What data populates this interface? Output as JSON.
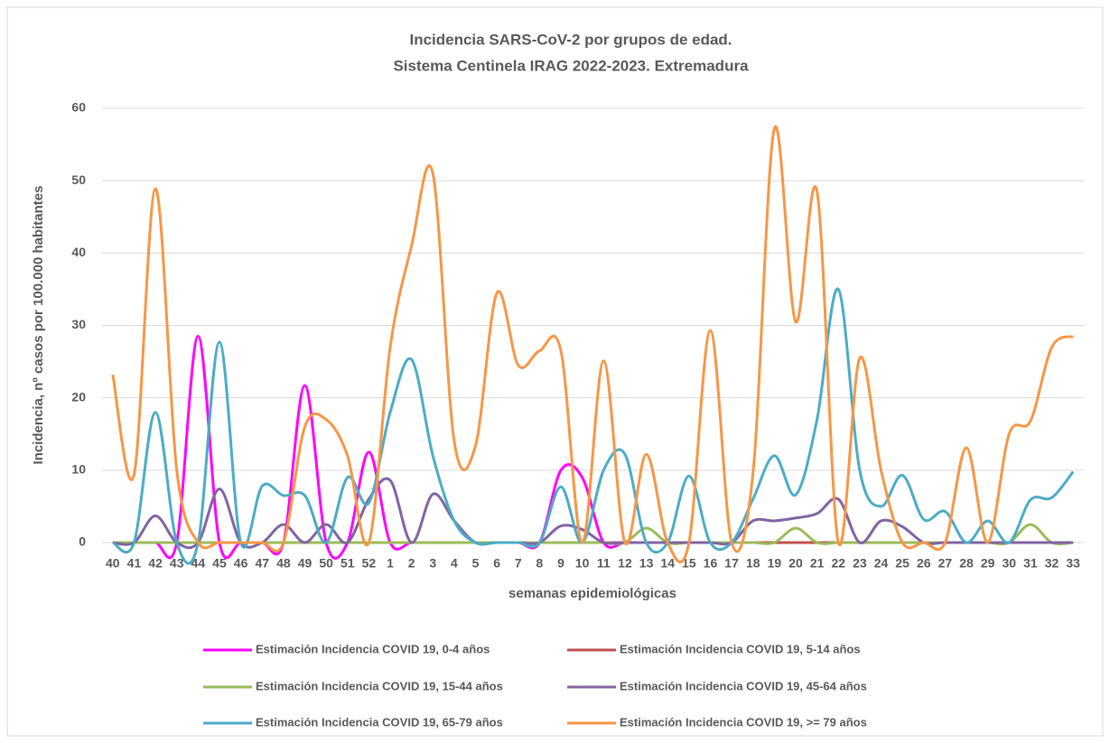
{
  "chart_data": {
    "type": "line",
    "title": "Incidencia SARS-CoV-2 por grupos de edad.",
    "subtitle": "Sistema Centinela IRAG 2022-2023. Extremadura",
    "x_label": "semanas epidemiológicas",
    "y_label": "Incidencia, nº casos por 100.000 habitantes",
    "categories": [
      "40",
      "41",
      "42",
      "43",
      "44",
      "45",
      "46",
      "47",
      "48",
      "49",
      "50",
      "51",
      "52",
      "1",
      "2",
      "3",
      "4",
      "5",
      "6",
      "7",
      "8",
      "9",
      "10",
      "11",
      "12",
      "13",
      "14",
      "15",
      "16",
      "17",
      "18",
      "19",
      "20",
      "21",
      "22",
      "23",
      "24",
      "25",
      "26",
      "27",
      "28",
      "29",
      "30",
      "31",
      "32",
      "33"
    ],
    "ylim": [
      0,
      60
    ],
    "yticks": [
      0,
      10,
      20,
      30,
      40,
      50,
      60
    ],
    "grid": true,
    "smooth": true,
    "legend": "bottom",
    "series": [
      {
        "name": "Estimación Incidencia COVID 19, 0-4 años",
        "color": "#ff00ff",
        "values": [
          0,
          0,
          0,
          0,
          28.5,
          0,
          0,
          0,
          0,
          21.7,
          0,
          0,
          12.5,
          0,
          0,
          0,
          0,
          0,
          0,
          0,
          0,
          10,
          9,
          0,
          0,
          0,
          0,
          0,
          0,
          0,
          0,
          0,
          0,
          0,
          0,
          0,
          0,
          0,
          0,
          0,
          0,
          0,
          0,
          0,
          0,
          0
        ]
      },
      {
        "name": "Estimación Incidencia COVID 19, 5-14 años",
        "color": "#c0504d",
        "values": [
          0,
          0,
          0,
          0,
          0,
          0,
          0,
          0,
          0,
          0,
          0,
          0,
          0,
          0,
          0,
          0,
          0,
          0,
          0,
          0,
          0,
          0,
          0,
          0,
          0,
          0,
          0,
          0,
          0,
          0,
          0,
          0,
          0,
          0,
          0,
          0,
          0,
          0,
          0,
          0,
          0,
          0,
          0,
          0,
          0,
          0
        ]
      },
      {
        "name": "Estimación Incidencia COVID 19, 15-44 años",
        "color": "#9bbb59",
        "values": [
          0,
          0,
          0,
          0,
          0,
          0,
          0,
          0,
          0,
          0,
          0,
          0,
          0,
          0,
          0,
          0,
          0,
          0,
          0,
          0,
          0,
          0,
          0,
          0,
          0,
          2,
          0,
          0,
          0,
          0,
          0,
          0,
          2,
          0,
          0,
          0,
          0,
          0,
          0,
          0,
          0,
          0,
          0,
          2.5,
          0,
          0
        ]
      },
      {
        "name": "Estimación Incidencia COVID 19, 45-64 años",
        "color": "#8064a2",
        "values": [
          0,
          0,
          3.7,
          0,
          0,
          7.4,
          0,
          0,
          2.5,
          0,
          2.5,
          0,
          6,
          8.6,
          0,
          6.7,
          3,
          0,
          0,
          0,
          0,
          2.3,
          1.8,
          0,
          0,
          0,
          0,
          0,
          0,
          0,
          3,
          3,
          3.4,
          4,
          6,
          0,
          3,
          2.2,
          0,
          0,
          0,
          0,
          0,
          0,
          0,
          0
        ]
      },
      {
        "name": "Estimación Incidencia COVID 19, 65-79 años",
        "color": "#4bacc6",
        "values": [
          0,
          0,
          18,
          0,
          0,
          27.7,
          0,
          7.8,
          6.5,
          6.5,
          0,
          9,
          5.5,
          18,
          25.3,
          12,
          3,
          0,
          0,
          0,
          0,
          7.7,
          0,
          10,
          12.2,
          0,
          0,
          9.2,
          0,
          0,
          6,
          12,
          6.6,
          17,
          35,
          10,
          5,
          9.3,
          3.2,
          4.3,
          0,
          3,
          0,
          5.9,
          6.2,
          9.8
        ]
      },
      {
        "name": "Estimación Incidencia COVID 19, >= 79 años",
        "color": "#f79646",
        "values": [
          23.2,
          9.4,
          48.9,
          10,
          0,
          0,
          0,
          0,
          0,
          16,
          17,
          12,
          0,
          27,
          41,
          51,
          14,
          13.4,
          34.5,
          24.5,
          26.5,
          26.5,
          0,
          25.1,
          0,
          12.2,
          0,
          0,
          29.3,
          0,
          9.6,
          57.2,
          30.5,
          48.5,
          0,
          25.5,
          10,
          0,
          0,
          0,
          13.1,
          0,
          15,
          16.8,
          27,
          28.5
        ]
      }
    ]
  }
}
